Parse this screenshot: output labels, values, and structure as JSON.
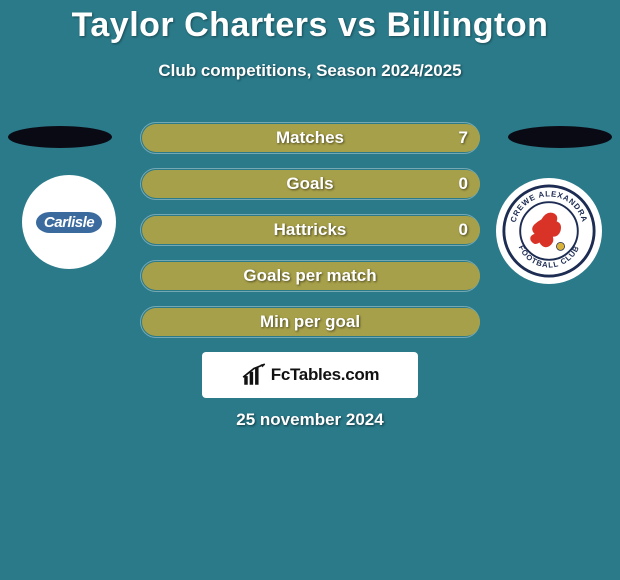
{
  "background_color": "#2a7a8a",
  "title": {
    "text": "Taylor Charters vs Billington",
    "color": "#ffffff",
    "font_size_pt": 25,
    "weight": 900
  },
  "subtitle": {
    "text": "Club competitions, Season 2024/2025",
    "color": "#ffffff",
    "font_size_pt": 13,
    "weight": 700
  },
  "left_player": {
    "oval_color": "#0a0a14",
    "badge_bg": "#ffffff",
    "badge_label": "Carlisle",
    "badge_label_bg": "#3a6a9e",
    "badge_label_color": "#ffffff"
  },
  "right_player": {
    "oval_color": "#0a0a14",
    "badge_bg": "#ffffff",
    "badge_ring_text_top": "CREWE ALEXANDRA",
    "badge_ring_text_bottom": "FOOTBALL CLUB",
    "badge_ring_color": "#1d2c52",
    "badge_inner_bg": "#ffffff",
    "badge_accent": "#d93226"
  },
  "stats": {
    "bar_fill_color": "#a7a04a",
    "bar_outline_color": "rgba(255,255,255,0.35)",
    "rows": [
      {
        "label": "Matches",
        "value": "7",
        "fill_left_pct": 0.6,
        "fill_right_pct": 100
      },
      {
        "label": "Goals",
        "value": "0",
        "fill_left_pct": 0.6,
        "fill_right_pct": 100
      },
      {
        "label": "Hattricks",
        "value": "0",
        "fill_left_pct": 0.6,
        "fill_right_pct": 100
      },
      {
        "label": "Goals per match",
        "value": "",
        "fill_left_pct": 0.6,
        "fill_right_pct": 100
      },
      {
        "label": "Min per goal",
        "value": "",
        "fill_left_pct": 0.6,
        "fill_right_pct": 100
      }
    ]
  },
  "logo": {
    "brand_text": "FcTables.com",
    "icon": "bar-chart-icon",
    "bg": "#ffffff",
    "text_color": "#111111"
  },
  "date": {
    "text": "25 november 2024",
    "color": "#ffffff"
  }
}
